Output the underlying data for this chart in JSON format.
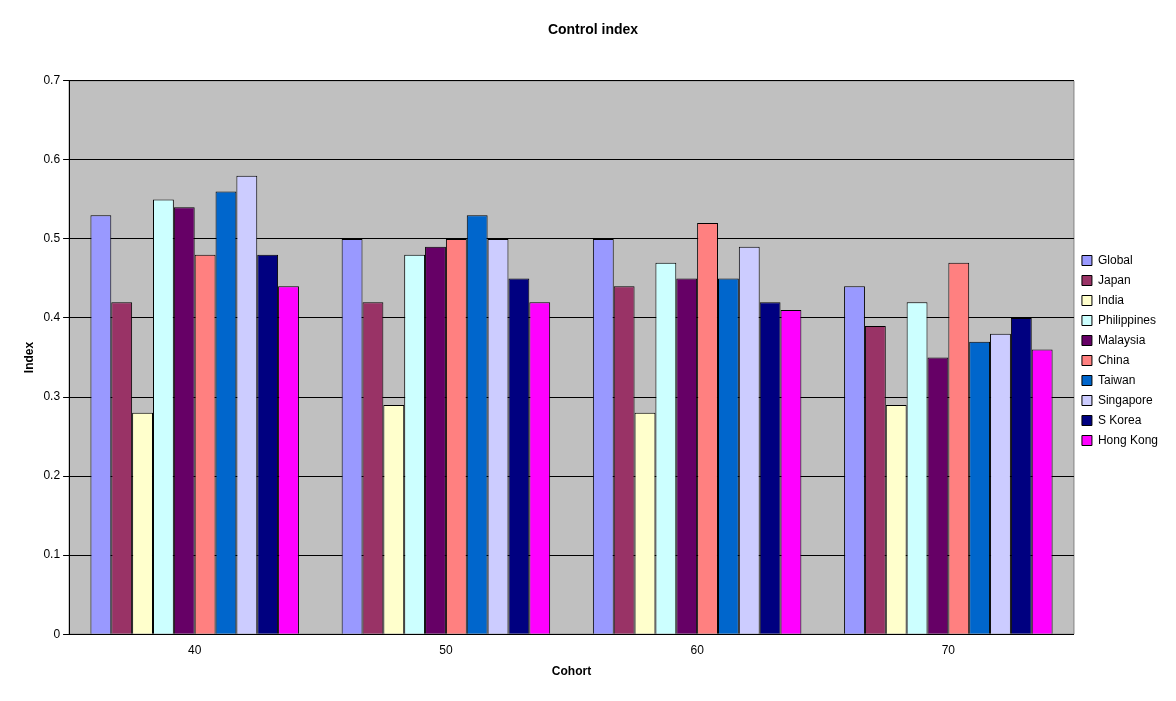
{
  "chart_data": {
    "type": "bar",
    "title": "Control index",
    "xlabel": "Cohort",
    "ylabel": "Index",
    "categories": [
      "40",
      "50",
      "60",
      "70"
    ],
    "series": [
      {
        "name": "Global",
        "color": "#9999ff",
        "values": [
          0.53,
          0.5,
          0.5,
          0.44
        ]
      },
      {
        "name": "Japan",
        "color": "#993366",
        "values": [
          0.42,
          0.42,
          0.44,
          0.39
        ]
      },
      {
        "name": "India",
        "color": "#ffffcc",
        "values": [
          0.28,
          0.29,
          0.28,
          0.29
        ]
      },
      {
        "name": "Philippines",
        "color": "#ccffff",
        "values": [
          0.55,
          0.48,
          0.47,
          0.42
        ]
      },
      {
        "name": "Malaysia",
        "color": "#660066",
        "values": [
          0.54,
          0.49,
          0.45,
          0.35
        ]
      },
      {
        "name": "China",
        "color": "#ff8080",
        "values": [
          0.48,
          0.5,
          0.52,
          0.47
        ]
      },
      {
        "name": "Taiwan",
        "color": "#0066cc",
        "values": [
          0.56,
          0.53,
          0.45,
          0.37
        ]
      },
      {
        "name": "Singapore",
        "color": "#ccccff",
        "values": [
          0.58,
          0.5,
          0.49,
          0.38
        ]
      },
      {
        "name": "S Korea",
        "color": "#000080",
        "values": [
          0.48,
          0.45,
          0.42,
          0.4
        ]
      },
      {
        "name": "Hong Kong",
        "color": "#ff00ff",
        "values": [
          0.44,
          0.42,
          0.41,
          0.36
        ]
      }
    ],
    "ylim": [
      0,
      0.7
    ],
    "yticks": [
      0,
      0.1,
      0.2,
      0.3,
      0.4,
      0.5,
      0.6,
      0.7
    ],
    "grid": "y",
    "legend": "right"
  }
}
